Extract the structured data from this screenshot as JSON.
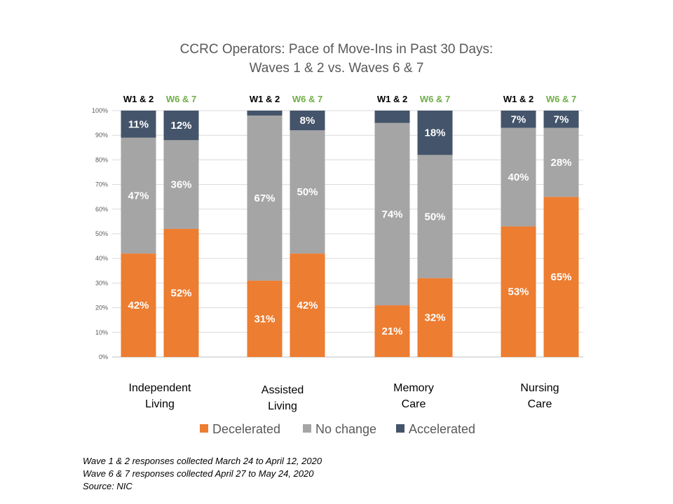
{
  "chart_data": {
    "type": "bar",
    "stacked": true,
    "title_lines": [
      "CCRC Operators: Pace of Move-Ins in Past 30 Days:",
      "Waves 1 & 2 vs. Waves 6 & 7"
    ],
    "categories": [
      "Independent Living",
      "Assisted Living",
      "Memory Care",
      "Nursing Care"
    ],
    "category_label_lines": [
      [
        "Independent",
        "Living"
      ],
      [
        "Assisted",
        "Living"
      ],
      [
        "Memory",
        "Care"
      ],
      [
        "Nursing",
        "Care"
      ]
    ],
    "groups": [
      "W1 & 2",
      "W6 & 7"
    ],
    "group_colors": [
      "#000000",
      "#70ad47"
    ],
    "ylim": [
      0,
      100
    ],
    "yticks": [
      "0%",
      "10%",
      "20%",
      "30%",
      "40%",
      "50%",
      "60%",
      "70%",
      "80%",
      "90%",
      "100%"
    ],
    "series": [
      {
        "name": "Decelerated",
        "color": "#ed7d31",
        "values": [
          [
            42,
            52
          ],
          [
            31,
            42
          ],
          [
            21,
            32
          ],
          [
            53,
            65
          ]
        ],
        "labels": [
          [
            "42%",
            "52%"
          ],
          [
            "31%",
            "42%"
          ],
          [
            "21%",
            "32%"
          ],
          [
            "53%",
            "65%"
          ]
        ]
      },
      {
        "name": "No change",
        "color": "#a5a5a5",
        "values": [
          [
            47,
            36
          ],
          [
            67,
            50
          ],
          [
            74,
            50
          ],
          [
            40,
            28
          ]
        ],
        "labels": [
          [
            "47%",
            "36%"
          ],
          [
            "67%",
            "50%"
          ],
          [
            "74%",
            "50%"
          ],
          [
            "40%",
            "28%"
          ]
        ]
      },
      {
        "name": "Accelerated",
        "color": "#44546a",
        "values": [
          [
            11,
            12
          ],
          [
            2,
            8
          ],
          [
            5,
            18
          ],
          [
            7,
            7
          ]
        ],
        "labels": [
          [
            "11%",
            "12%"
          ],
          [
            "",
            "8%"
          ],
          [
            "",
            "18%"
          ],
          [
            "7%",
            "7%"
          ]
        ]
      }
    ],
    "legend_position": "bottom",
    "grid": true
  },
  "footnotes": [
    "Wave 1 & 2 responses collected March 24 to April 12, 2020",
    "Wave 6 & 7 responses collected April 27 to May 24, 2020",
    "Source: NIC"
  ]
}
